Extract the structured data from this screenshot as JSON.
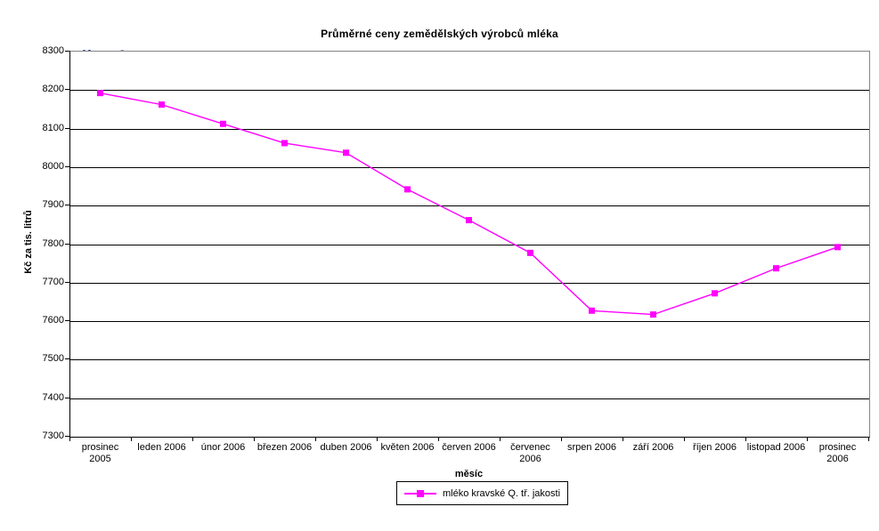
{
  "chart": {
    "logo_text": "ČSÚ"
  },
  "colors": {
    "series": "#FF00FF",
    "logo": "#27348B",
    "plot_border": "#848484",
    "grid": "#000000",
    "text": "#000000",
    "background": "#FFFFFF"
  },
  "chart_data": {
    "type": "line",
    "title": "Průměrné ceny zemědělských výrobců mléka",
    "xlabel": "měsíc",
    "ylabel": "Kč za tis. litrů",
    "categories": [
      "prosinec 2005",
      "leden 2006",
      "únor 2006",
      "březen 2006",
      "duben 2006",
      "květen 2006",
      "červen 2006",
      "červenec 2006",
      "srpen 2006",
      "září 2006",
      "říjen 2006",
      "listopad 2006",
      "prosinec 2006"
    ],
    "category_lines": [
      [
        "prosinec",
        "2005"
      ],
      [
        "leden 2006"
      ],
      [
        "únor 2006"
      ],
      [
        "březen 2006"
      ],
      [
        "duben 2006"
      ],
      [
        "květen 2006"
      ],
      [
        "červen 2006"
      ],
      [
        "červenec",
        "2006"
      ],
      [
        "srpen 2006"
      ],
      [
        "září 2006"
      ],
      [
        "říjen 2006"
      ],
      [
        "listopad 2006"
      ],
      [
        "prosinec",
        "2006"
      ]
    ],
    "series": [
      {
        "name": "mléko kravské Q. tř. jakosti",
        "values": [
          8190,
          8160,
          8110,
          8060,
          8035,
          7940,
          7860,
          7775,
          7625,
          7615,
          7670,
          7735,
          7790
        ],
        "color": "#FF00FF",
        "marker": "square"
      }
    ],
    "ylim": [
      7300,
      8300
    ],
    "ytick_step": 100,
    "yticks": [
      8300,
      8200,
      8100,
      8000,
      7900,
      7800,
      7700,
      7600,
      7500,
      7400,
      7300
    ],
    "grid": true,
    "legend_position": "bottom"
  }
}
